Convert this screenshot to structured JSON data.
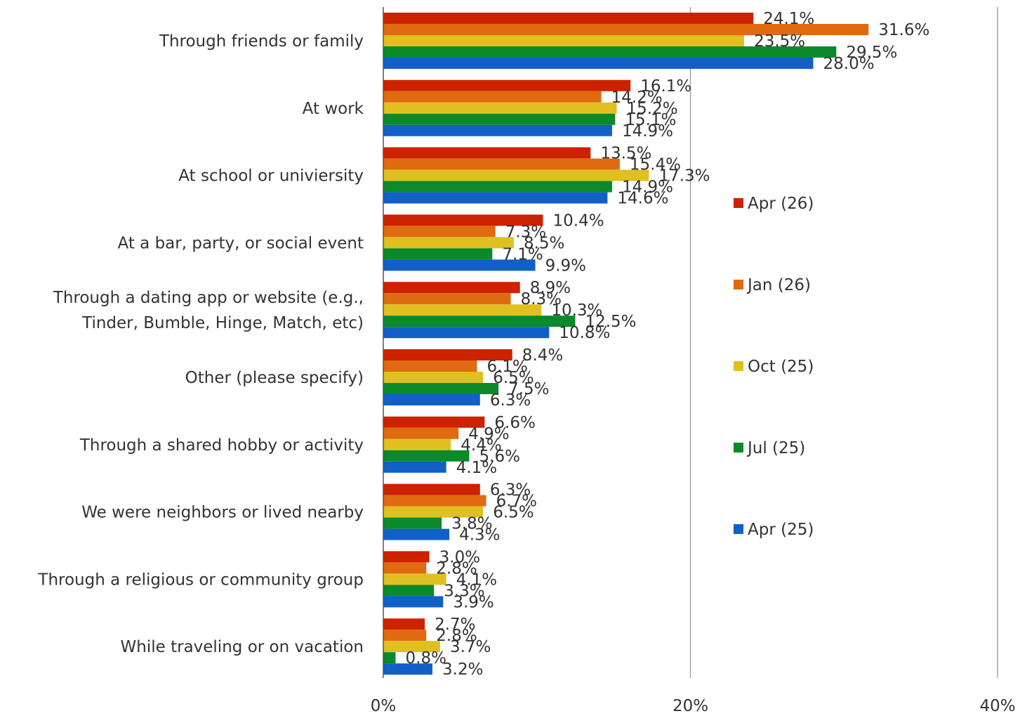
{
  "chart_data": {
    "type": "bar",
    "orientation": "horizontal",
    "categories": [
      [
        "Through friends or family"
      ],
      [
        "At work"
      ],
      [
        "At school or univiersity"
      ],
      [
        "At a bar, party, or social event"
      ],
      [
        "Through a dating app or website (e.g.,",
        "Tinder, Bumble, Hinge, Match, etc)"
      ],
      [
        "Other (please specify)"
      ],
      [
        "Through a shared hobby or activity"
      ],
      [
        "We were neighbors or lived nearby"
      ],
      [
        "Through a religious or community group"
      ],
      [
        "While traveling or on vacation"
      ]
    ],
    "series": [
      {
        "name": "Apr (26)",
        "color": "#cc2200",
        "values": [
          24.1,
          16.1,
          13.5,
          10.4,
          8.9,
          8.4,
          6.6,
          6.3,
          3.0,
          2.7
        ],
        "labels": [
          "24.1%",
          "16.1%",
          "13.5%",
          "10.4%",
          "8.9%",
          "8.4%",
          "6.6%",
          "6.3%",
          "3.0%",
          "2.7%"
        ]
      },
      {
        "name": "Jan (26)",
        "color": "#e06a10",
        "values": [
          31.6,
          14.2,
          15.4,
          7.3,
          8.3,
          6.1,
          4.9,
          6.7,
          2.8,
          2.8
        ],
        "labels": [
          "31.6%",
          "14.2%",
          "15.4%",
          "7.3%",
          "8.3%",
          "6.1%",
          "4.9%",
          "6.7%",
          "2.8%",
          "2.8%"
        ]
      },
      {
        "name": "Oct (25)",
        "color": "#e0c020",
        "values": [
          23.5,
          15.2,
          17.3,
          8.5,
          10.3,
          6.5,
          4.4,
          6.5,
          4.1,
          3.7
        ],
        "labels": [
          "23.5%",
          "15.2%",
          "17.3%",
          "8.5%",
          "10.3%",
          "6.5%",
          "4.4%",
          "6.5%",
          "4.1%",
          "3.7%"
        ]
      },
      {
        "name": "Jul (25)",
        "color": "#0a8a2a",
        "values": [
          29.5,
          15.1,
          14.9,
          7.1,
          12.5,
          7.5,
          5.6,
          3.8,
          3.3,
          0.8
        ],
        "labels": [
          "29.5%",
          "15.1%",
          "14.9%",
          "7.1%",
          "12.5%",
          "7.5%",
          "5.6%",
          "3.8%",
          "3.3%",
          "0.8%"
        ]
      },
      {
        "name": "Apr (25)",
        "color": "#1060c8",
        "values": [
          28.0,
          14.9,
          14.6,
          9.9,
          10.8,
          6.3,
          4.1,
          4.3,
          3.9,
          3.2
        ],
        "labels": [
          "28.0%",
          "14.9%",
          "14.6%",
          "9.9%",
          "10.8%",
          "6.3%",
          "4.1%",
          "4.3%",
          "3.9%",
          "3.2%"
        ]
      }
    ],
    "xlim": [
      0,
      40
    ],
    "xticks": [
      {
        "value": 0,
        "label": "0%"
      },
      {
        "value": 20,
        "label": "20%"
      },
      {
        "value": 40,
        "label": "40%"
      }
    ],
    "grid": "vertical",
    "legend_placement": "right",
    "axis_color": "#555555",
    "grid_color": "#999999"
  }
}
